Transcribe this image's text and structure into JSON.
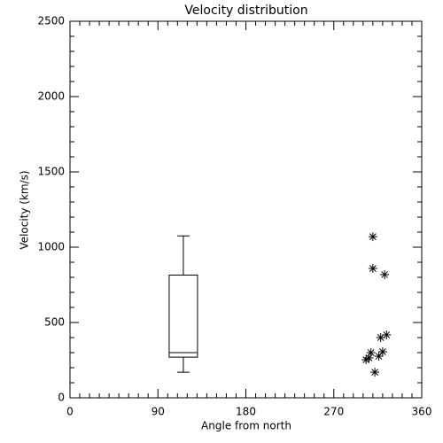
{
  "chart_data": {
    "type": "box",
    "title": "Velocity distribution",
    "xlabel": "Angle from north",
    "ylabel": "Velocity (km/s)",
    "xlim": [
      0,
      360
    ],
    "xticks": [
      0,
      90,
      180,
      270,
      360
    ],
    "ylim": [
      0,
      2500
    ],
    "yticks": [
      0,
      500,
      1000,
      1500,
      2000,
      2500
    ],
    "color": "#000000",
    "box": {
      "position": 116,
      "whisker_low": 170,
      "q1": 270,
      "median": 300,
      "q3": 815,
      "whisker_high": 1075
    },
    "points": {
      "x": [
        310,
        310,
        322,
        324,
        318,
        320,
        316,
        308,
        306,
        303,
        312
      ],
      "y": [
        1070,
        859,
        818,
        418,
        400,
        306,
        276,
        300,
        265,
        253,
        170
      ]
    }
  }
}
